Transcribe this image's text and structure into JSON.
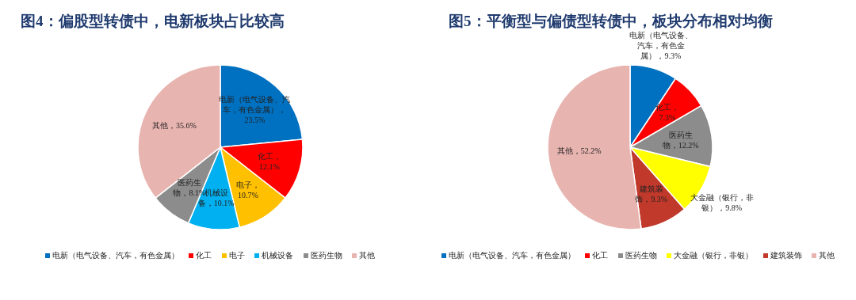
{
  "chart_data": [
    {
      "type": "pie",
      "title": "图4：偏股型转债中，电新板块占比较高",
      "legend": "bottom",
      "categories": [
        "电新（电气设备、汽车，有色金属）",
        "化工",
        "电子",
        "机械设备",
        "医药生物",
        "其他"
      ],
      "values": [
        23.5,
        12.1,
        10.7,
        10.1,
        8.1,
        35.6
      ],
      "colors": [
        "#0070c0",
        "#ff0000",
        "#ffc000",
        "#00b0f0",
        "#8c8c8c",
        "#e8b4b0"
      ],
      "value_labels": [
        "电新（电气设备、汽车，有色金属），23.5%",
        "化工，12.1%",
        "电子，10.7%",
        "机械设备，10.1%",
        "医药生物，8.1%",
        "其他，35.6%"
      ]
    },
    {
      "type": "pie",
      "title": "图5：平衡型与偏债型转债中，板块分布相对均衡",
      "legend": "bottom",
      "categories": [
        "电新（电气设备、汽车，有色金属）",
        "化工",
        "医药生物",
        "大金融（银行，非银）",
        "建筑装饰",
        "其他"
      ],
      "values": [
        9.3,
        7.3,
        12.2,
        9.8,
        9.3,
        52.2
      ],
      "colors": [
        "#0070c0",
        "#ff0000",
        "#8c8c8c",
        "#ffff00",
        "#c0392b",
        "#e8b4b0"
      ],
      "value_labels": [
        "电新（电气设备、汽车，有色金属），9.3%",
        "化工，7.3%",
        "医药生物，12.2%",
        "大金融（银行，非银），9.8%",
        "建筑装饰，9.3%",
        "其他，52.2%"
      ]
    }
  ]
}
